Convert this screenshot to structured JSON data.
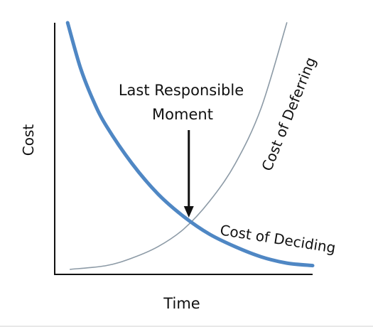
{
  "chart_data": {
    "type": "line",
    "title": "",
    "xlabel": "Time",
    "ylabel": "Cost",
    "xlim": [
      0,
      10
    ],
    "ylim": [
      0,
      10
    ],
    "grid": false,
    "legend": "none",
    "series": [
      {
        "name": "Cost of Deciding",
        "color": "#4f87c4",
        "x": [
          0.5,
          1,
          1.5,
          2,
          3,
          4,
          5,
          6,
          7,
          8,
          9,
          10
        ],
        "y": [
          10,
          8.2,
          6.9,
          5.9,
          4.4,
          3.2,
          2.3,
          1.6,
          1.1,
          0.7,
          0.45,
          0.35
        ]
      },
      {
        "name": "Cost of Deferring",
        "color": "#8c9aa6",
        "x": [
          0.6,
          2,
          3,
          4,
          5,
          6,
          7,
          8,
          9
        ],
        "y": [
          0.2,
          0.35,
          0.65,
          1.1,
          1.8,
          2.9,
          4.4,
          6.6,
          10
        ]
      }
    ],
    "annotations": {
      "last_responsible_moment": "Last Responsible Moment",
      "lrm_line1": "Last Responsible",
      "lrm_line2": "Moment",
      "lrm_x": 5.2
    }
  }
}
